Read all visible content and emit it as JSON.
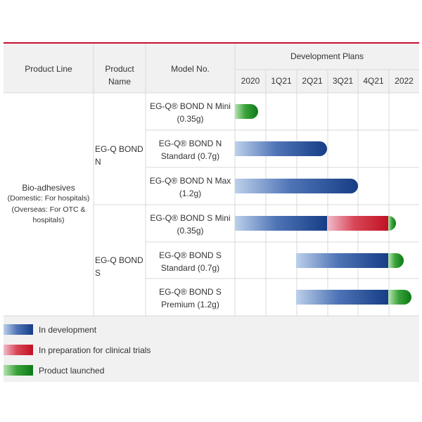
{
  "headers": {
    "product_line": "Product Line",
    "product_name": "Product Name",
    "model_no": "Model No.",
    "dev_plans": "Development Plans"
  },
  "periods": [
    "2020",
    "1Q21",
    "2Q21",
    "3Q21",
    "4Q21",
    "2022"
  ],
  "product_line": {
    "title": "Bio-adhesives",
    "sub1": "(Domestic: For hospitals)",
    "sub2": "(Overseas: For OTC &",
    "sub3": "hospitals)"
  },
  "product_names": [
    "EG-Q BOND N",
    "EG-Q BOND S"
  ],
  "models": [
    {
      "line1": "EG-Q® BOND N Mini",
      "line2": "(0.35g)"
    },
    {
      "line1": "EG-Q® BOND N",
      "line2": "Standard (0.7g)"
    },
    {
      "line1": "EG-Q® BOND N Max",
      "line2": "(1.2g)"
    },
    {
      "line1": "EG-Q® BOND S Mini",
      "line2": "(0.35g)"
    },
    {
      "line1": "EG-Q® BOND S",
      "line2": "Standard (0.7g)"
    },
    {
      "line1": "EG-Q® BOND S",
      "line2": "Premium (1.2g)"
    }
  ],
  "legend": [
    {
      "key": "development",
      "label": "In development"
    },
    {
      "key": "clinical",
      "label": "In preparation for clinical trials"
    },
    {
      "key": "launched",
      "label": "Product launched"
    }
  ],
  "colors": {
    "accent_line": "#c8102e",
    "development": "#163d86",
    "clinical": "#c01224",
    "launched": "#0d7a17"
  },
  "chart_data": {
    "type": "gantt",
    "time_axis": [
      "2020",
      "1Q21",
      "2Q21",
      "3Q21",
      "4Q21",
      "2022"
    ],
    "tasks": [
      {
        "model": "EG-Q® BOND N Mini (0.35g)",
        "segments": [
          {
            "status": "launched",
            "start": 0,
            "end": 0.75
          }
        ]
      },
      {
        "model": "EG-Q® BOND N Standard (0.7g)",
        "segments": [
          {
            "status": "development",
            "start": 0,
            "end": 3.0
          }
        ]
      },
      {
        "model": "EG-Q® BOND N Max (1.2g)",
        "segments": [
          {
            "status": "development",
            "start": 0,
            "end": 4.0
          }
        ]
      },
      {
        "model": "EG-Q® BOND S Mini (0.35g)",
        "segments": [
          {
            "status": "development",
            "start": 0,
            "end": 3.0
          },
          {
            "status": "clinical",
            "start": 3.0,
            "end": 5.0
          },
          {
            "status": "launched",
            "start": 5.0,
            "end": 5.25
          }
        ]
      },
      {
        "model": "EG-Q® BOND S Standard (0.7g)",
        "segments": [
          {
            "status": "development",
            "start": 2.0,
            "end": 5.0
          },
          {
            "status": "launched",
            "start": 5.0,
            "end": 5.5
          }
        ]
      },
      {
        "model": "EG-Q® BOND S Premium (1.2g)",
        "segments": [
          {
            "status": "development",
            "start": 2.0,
            "end": 5.0
          },
          {
            "status": "launched",
            "start": 5.0,
            "end": 5.75
          }
        ]
      }
    ]
  }
}
